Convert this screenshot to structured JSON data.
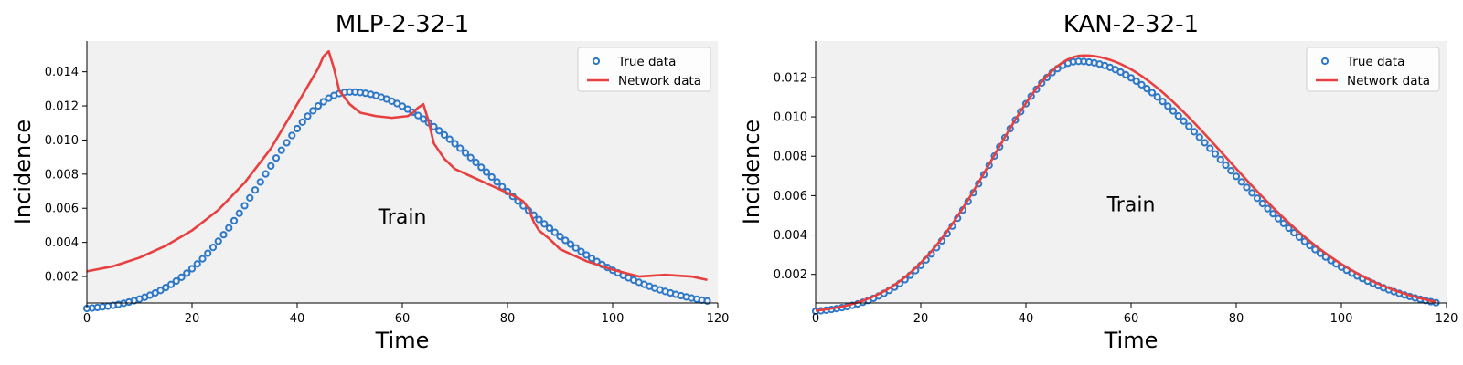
{
  "chart_data": [
    {
      "type": "line",
      "title": "MLP-2-32-1",
      "xlabel": "Time",
      "ylabel": "Incidence",
      "xlim": [
        0,
        120
      ],
      "ylim": [
        0.00045,
        0.0158
      ],
      "xticks": [
        "0",
        "20",
        "40",
        "60",
        "80",
        "100",
        "120"
      ],
      "yticks": [
        "0.002",
        "0.004",
        "0.006",
        "0.008",
        "0.010",
        "0.012",
        "0.014"
      ],
      "annotation": "Train",
      "annotation_at": [
        60,
        0.0051
      ],
      "legend_position": "upper right",
      "grid": false,
      "series": [
        {
          "name": "True data",
          "style": "markers",
          "color": "#2e78c7",
          "x_range": [
            0,
            118
          ],
          "x_step": 1,
          "gaussian": {
            "peak": 0.01282,
            "center": 50,
            "sigma_left": 16.5,
            "sigma_right": 27.2
          }
        },
        {
          "name": "Network data",
          "style": "line",
          "color": "#e84040",
          "x": [
            0,
            5,
            10,
            15,
            20,
            25,
            30,
            35,
            40,
            44,
            45,
            46,
            47,
            48,
            50,
            52,
            55,
            58,
            61,
            62,
            63,
            64,
            65,
            66,
            68,
            70,
            75,
            80,
            82,
            83,
            84,
            85,
            86,
            88,
            90,
            95,
            100,
            105,
            110,
            115,
            118
          ],
          "y": [
            0.0023,
            0.0026,
            0.0031,
            0.0038,
            0.0047,
            0.0059,
            0.0075,
            0.0095,
            0.0121,
            0.0142,
            0.0149,
            0.0152,
            0.0142,
            0.0129,
            0.0121,
            0.0116,
            0.0114,
            0.0113,
            0.0114,
            0.0116,
            0.0119,
            0.0121,
            0.0111,
            0.0098,
            0.0089,
            0.0083,
            0.0076,
            0.0069,
            0.0066,
            0.0064,
            0.006,
            0.0052,
            0.0047,
            0.0042,
            0.0036,
            0.0029,
            0.0024,
            0.002,
            0.0021,
            0.002,
            0.0018
          ]
        }
      ]
    },
    {
      "type": "line",
      "title": "KAN-2-32-1",
      "xlabel": "Time",
      "ylabel": "Incidence",
      "xlim": [
        0,
        120
      ],
      "ylim": [
        0.00055,
        0.01385
      ],
      "xticks": [
        "0",
        "20",
        "40",
        "60",
        "80",
        "100",
        "120"
      ],
      "yticks": [
        "0.002",
        "0.004",
        "0.006",
        "0.008",
        "0.010",
        "0.012"
      ],
      "annotation": "Train",
      "annotation_at": [
        60,
        0.0052
      ],
      "legend_position": "upper right",
      "grid": false,
      "series": [
        {
          "name": "True data",
          "style": "markers",
          "color": "#2e78c7",
          "x_range": [
            0,
            118
          ],
          "x_step": 1,
          "gaussian": {
            "peak": 0.01282,
            "center": 50,
            "sigma_left": 16.5,
            "sigma_right": 27.2
          }
        },
        {
          "name": "Network data",
          "style": "line",
          "color": "#e84040",
          "x_range": [
            0,
            118
          ],
          "x_step": 1,
          "gaussian": {
            "peak": 0.01312,
            "center": 51,
            "sigma_left": 17.2,
            "sigma_right": 27.0
          }
        }
      ]
    }
  ]
}
